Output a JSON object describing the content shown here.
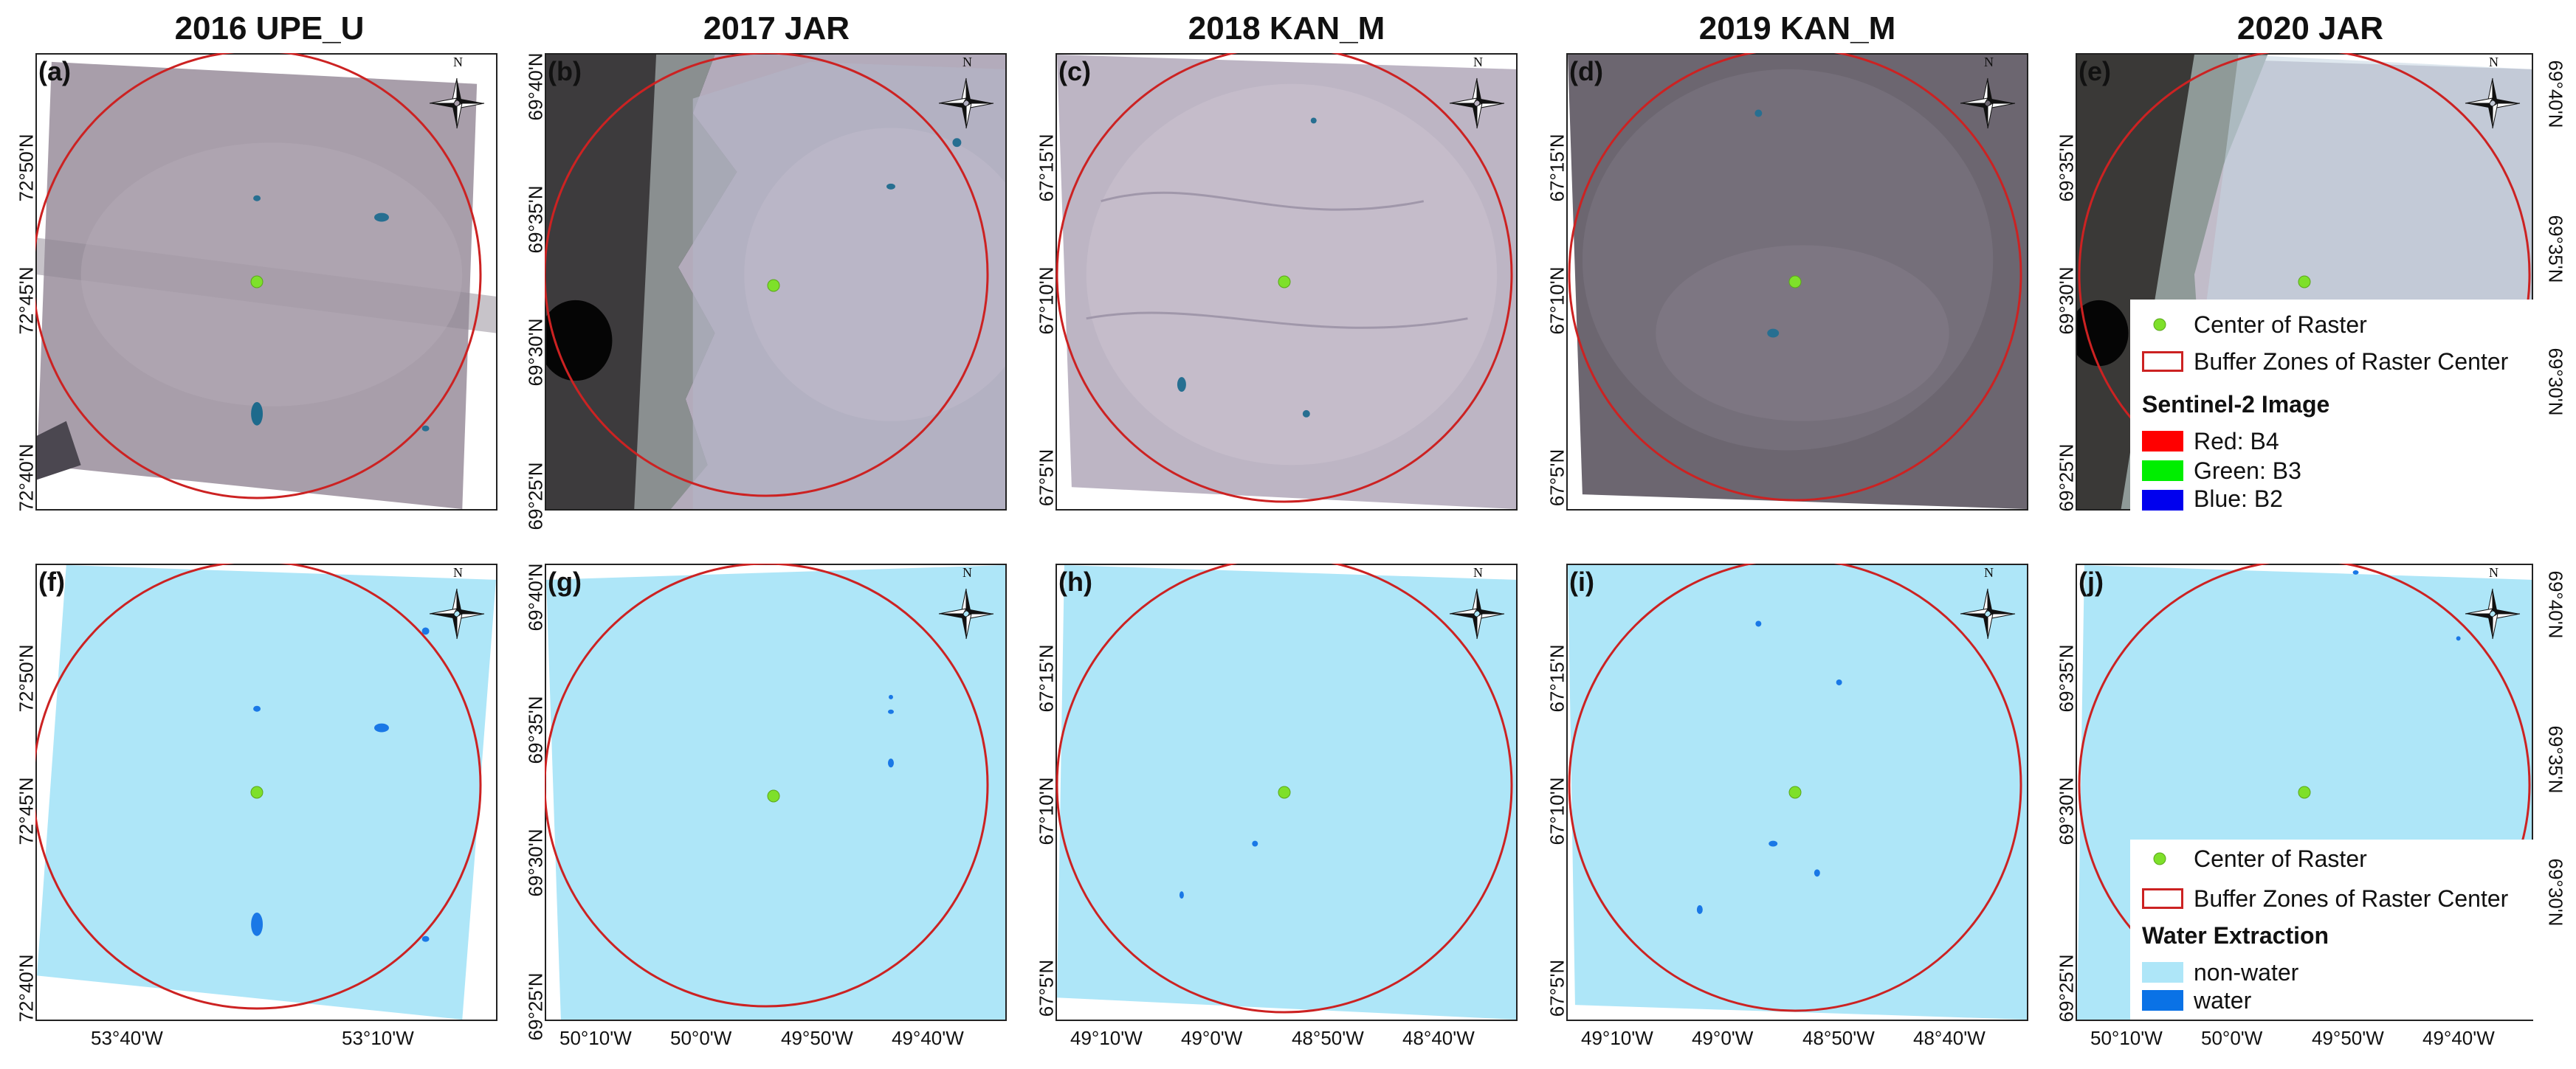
{
  "columns": [
    {
      "title": "2016 UPE_U",
      "label": "(a)",
      "label2": "(f)",
      "lat_left": [
        "72°50'N",
        "72°45'N",
        "72°40'N"
      ],
      "lon": [
        "53°40'W",
        "53°10'W"
      ]
    },
    {
      "title": "2017 JAR",
      "label": "(b)",
      "label2": "(g)",
      "lat_left": [
        "69°40'N",
        "69°35'N",
        "69°30'N",
        "69°25'N"
      ],
      "lon": [
        "50°10'W",
        "50°0'W",
        "49°50'W",
        "49°40'W"
      ]
    },
    {
      "title": "2018 KAN_M",
      "label": "(c)",
      "label2": "(h)",
      "lat_left": [
        "67°15'N",
        "67°10'N",
        "67°5'N"
      ],
      "lon": [
        "49°10'W",
        "49°0'W",
        "48°50'W",
        "48°40'W"
      ]
    },
    {
      "title": "2019 KAN_M",
      "label": "(d)",
      "label2": "(i)",
      "lat_left": [
        "67°15'N",
        "67°10'N",
        "67°5'N"
      ],
      "lon": [
        "49°10'W",
        "49°0'W",
        "48°50'W",
        "48°40'W"
      ]
    },
    {
      "title": "2020 JAR",
      "label": "(e)",
      "label2": "(j)",
      "lat_left": [
        "69°35'N",
        "69°30'N",
        "69°25'N"
      ],
      "lat_right": [
        "69°40'N",
        "69°35'N",
        "69°30'N"
      ],
      "lon": [
        "50°10'W",
        "50°0'W",
        "49°50'W",
        "49°40'W"
      ]
    }
  ],
  "north_label": "N",
  "legend_top": {
    "center": "Center of Raster",
    "buffer": "Buffer Zones of Raster Center",
    "section": "Sentinel-2 Image",
    "items": [
      {
        "label": "Red: B4",
        "color": "#ff0000"
      },
      {
        "label": "Green: B3",
        "color": "#00ee00"
      },
      {
        "label": "Blue: B2",
        "color": "#0000ee"
      }
    ]
  },
  "legend_bottom": {
    "center": "Center of Raster",
    "buffer": "Buffer Zones of Raster Center",
    "section": "Water Extraction",
    "items": [
      {
        "label": "non-water",
        "color": "#aee6f8"
      },
      {
        "label": "water",
        "color": "#0a72e6"
      }
    ]
  },
  "colors": {
    "buffer": "#cc2222",
    "center": "#7ee02a",
    "nonwater": "#aee6f8",
    "water": "#1a78e6"
  }
}
